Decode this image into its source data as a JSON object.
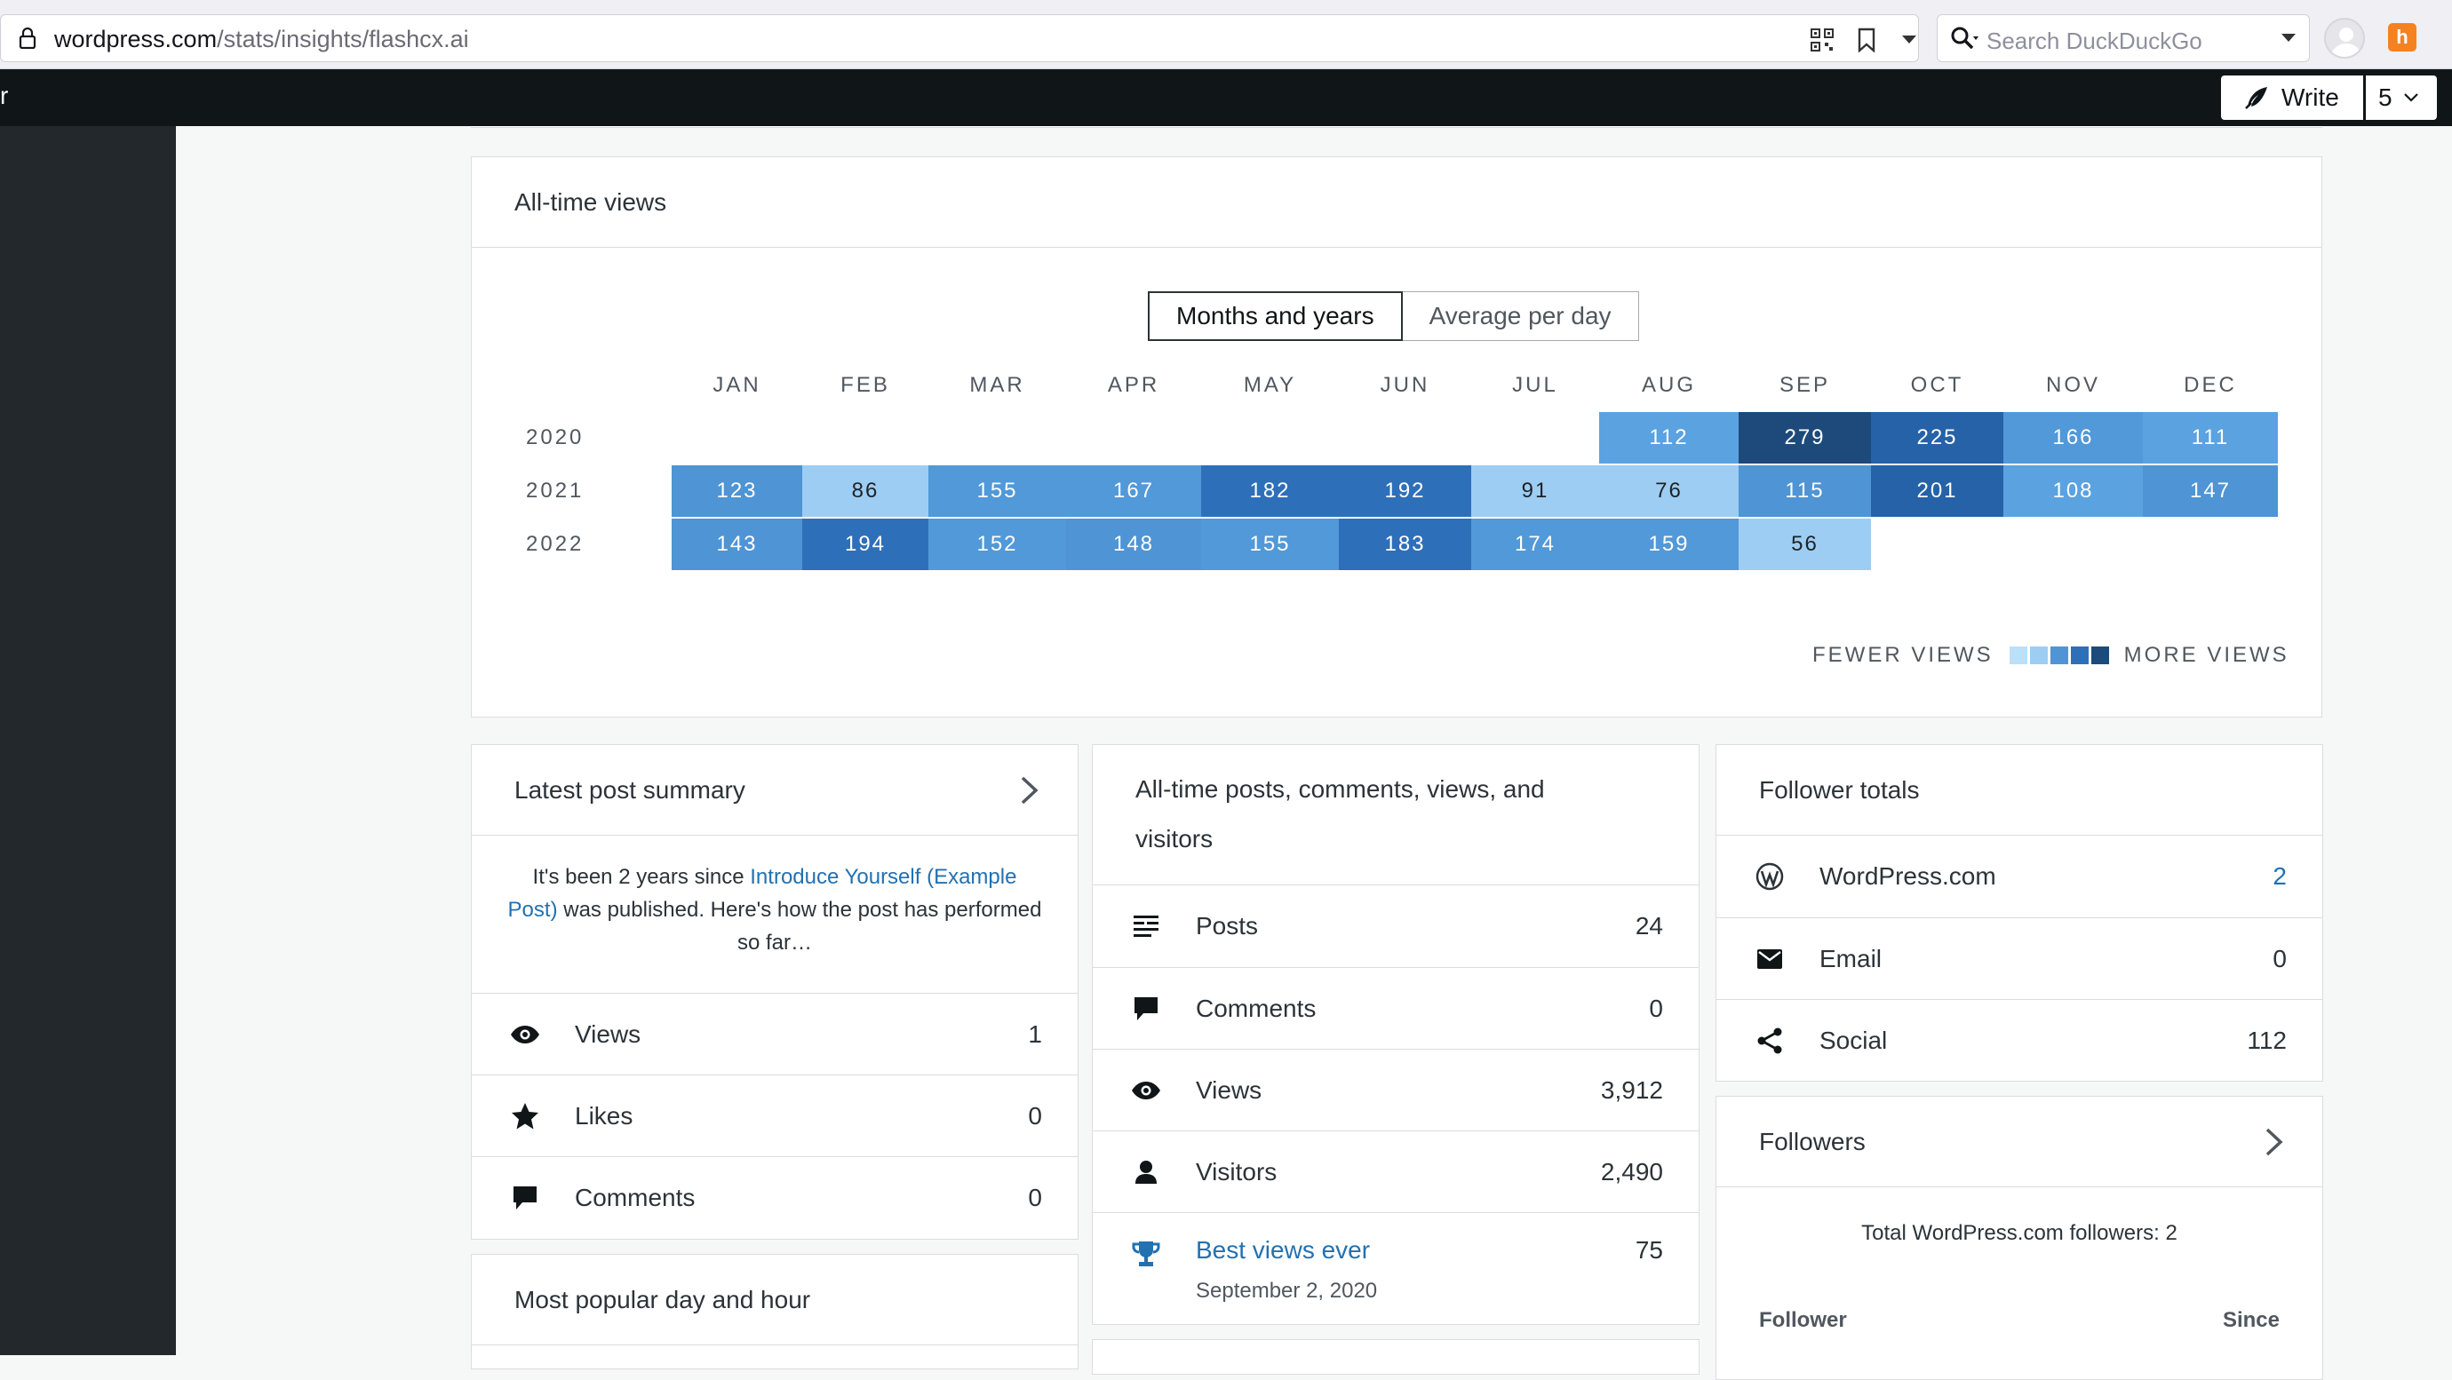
{
  "browser": {
    "url_host": "wordpress.com",
    "url_path": "/stats/insights/flashcx.ai",
    "search_placeholder": "Search DuckDuckGo",
    "extension_label": "h"
  },
  "masterbar": {
    "left_text": "r",
    "write_label": "Write",
    "count": "5"
  },
  "all_time_views": {
    "title": "All-time views",
    "toggle": {
      "options": [
        "Months and years",
        "Average per day"
      ],
      "selected": "Months and years"
    },
    "legend": {
      "fewer": "FEWER VIEWS",
      "more": "MORE VIEWS",
      "colors": [
        "#bbe0fa",
        "#9ecdf3",
        "#4f94d4",
        "#2e6fba",
        "#1d4a7a"
      ]
    }
  },
  "chart_data": {
    "type": "heatmap",
    "title": "All-time views",
    "months": [
      "JAN",
      "FEB",
      "MAR",
      "APR",
      "MAY",
      "JUN",
      "JUL",
      "AUG",
      "SEP",
      "OCT",
      "NOV",
      "DEC"
    ],
    "years": [
      "2020",
      "2021",
      "2022"
    ],
    "values": [
      [
        null,
        null,
        null,
        null,
        null,
        null,
        null,
        112,
        279,
        225,
        166,
        111
      ],
      [
        123,
        86,
        155,
        167,
        182,
        192,
        91,
        76,
        115,
        201,
        108,
        147
      ],
      [
        143,
        194,
        152,
        148,
        155,
        183,
        174,
        159,
        56,
        null,
        null,
        null
      ]
    ]
  },
  "latest_post": {
    "title": "Latest post summary",
    "summary_prefix": "It's been 2 years since ",
    "post_link": "Introduce Yourself (Example Post)",
    "summary_suffix": " was published. Here's how the post has performed so far…",
    "rows": [
      {
        "icon": "eye-icon",
        "label": "Views",
        "value": "1"
      },
      {
        "icon": "star-icon",
        "label": "Likes",
        "value": "0"
      },
      {
        "icon": "comment-icon",
        "label": "Comments",
        "value": "0"
      }
    ]
  },
  "popular": {
    "title": "Most popular day and hour"
  },
  "all_time": {
    "title_line1": "All-time posts, comments, views, and",
    "title_line2": "visitors",
    "rows": [
      {
        "icon": "posts-icon",
        "label": "Posts",
        "value": "24"
      },
      {
        "icon": "comment-icon",
        "label": "Comments",
        "value": "0"
      },
      {
        "icon": "eye-icon",
        "label": "Views",
        "value": "3,912"
      },
      {
        "icon": "person-icon",
        "label": "Visitors",
        "value": "2,490"
      }
    ],
    "best": {
      "label": "Best views ever",
      "date": "September 2, 2020",
      "value": "75"
    }
  },
  "follower_totals": {
    "title": "Follower totals",
    "rows": [
      {
        "icon": "wordpress-icon",
        "label": "WordPress.com",
        "value": "2"
      },
      {
        "icon": "email-icon",
        "label": "Email",
        "value": "0"
      },
      {
        "icon": "share-icon",
        "label": "Social",
        "value": "112"
      }
    ]
  },
  "followers": {
    "title": "Followers",
    "total_text": "Total WordPress.com followers: 2",
    "col_follower": "Follower",
    "col_since": "Since"
  }
}
